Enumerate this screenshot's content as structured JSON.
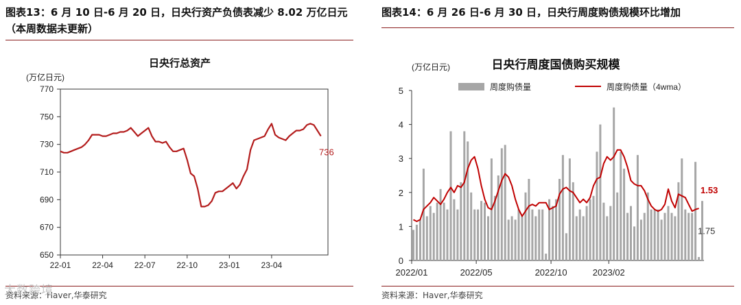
{
  "left": {
    "figure_title": "图表13：6 月 10 日-6 月 20 日，日央行资产负债表减少 8.02 万亿日元（本周数据未更新）",
    "source": "资料来源：Haver,华泰研究",
    "watermark": "大数跨境"
  },
  "right": {
    "figure_title": "图表14：6 月 26 日-6 月 30 日，日央行周度购债规模环比增加",
    "source": "资料来源：Haver,华泰研究"
  },
  "chart_data": [
    {
      "type": "line",
      "title": "日央行总资产",
      "unit_label": "(万亿日元)",
      "ylim": [
        650,
        770
      ],
      "yticks": [
        650,
        670,
        690,
        710,
        730,
        750,
        770
      ],
      "xlim": [
        0,
        19
      ],
      "xticks": [
        {
          "pos": 0,
          "label": "22-01"
        },
        {
          "pos": 3,
          "label": "22-04"
        },
        {
          "pos": 6,
          "label": "22-07"
        },
        {
          "pos": 9,
          "label": "22-10"
        },
        {
          "pos": 12,
          "label": "23-01"
        },
        {
          "pos": 15,
          "label": "23-04"
        }
      ],
      "color": "#b31b1b",
      "end_label": "736",
      "x": [
        0.0,
        0.25,
        0.5,
        0.75,
        1.0,
        1.25,
        1.5,
        1.75,
        2.0,
        2.25,
        2.5,
        2.75,
        3.0,
        3.25,
        3.5,
        3.75,
        4.0,
        4.25,
        4.5,
        4.75,
        5.0,
        5.25,
        5.5,
        5.75,
        6.0,
        6.25,
        6.5,
        6.75,
        7.0,
        7.25,
        7.5,
        7.75,
        8.0,
        8.25,
        8.5,
        8.75,
        9.0,
        9.25,
        9.5,
        9.75,
        10.0,
        10.25,
        10.5,
        10.75,
        11.0,
        11.25,
        11.5,
        11.75,
        12.0,
        12.25,
        12.5,
        12.75,
        13.0,
        13.25,
        13.5,
        13.75,
        14.0,
        14.25,
        14.5,
        14.75,
        15.0,
        15.25,
        15.5,
        15.75,
        16.0,
        16.25,
        16.5,
        16.75,
        17.0,
        17.25,
        17.5,
        17.75,
        18.0,
        18.25,
        18.5
      ],
      "y": [
        725,
        724,
        724,
        725,
        726,
        727,
        728,
        730,
        733,
        737,
        737,
        737,
        736,
        736,
        737,
        738,
        738,
        739,
        739,
        740,
        742,
        739,
        736,
        738,
        740,
        742,
        736,
        732,
        732,
        731,
        732,
        728,
        725,
        725,
        726,
        727,
        719,
        709,
        707,
        698,
        685,
        685,
        686,
        689,
        695,
        696,
        696,
        698,
        700,
        702,
        698,
        701,
        707,
        712,
        726,
        733,
        734,
        735,
        736,
        741,
        745,
        737,
        735,
        734,
        733,
        736,
        738,
        740,
        740,
        741,
        744,
        745,
        744,
        740,
        736
      ]
    },
    {
      "type": "bar",
      "title": "日央行周度国债购买规模",
      "unit_label": "(万亿日元)",
      "ylim": [
        0,
        5
      ],
      "yticks": [
        0,
        1,
        2,
        3,
        4,
        5
      ],
      "xticks": [
        {
          "index": 0,
          "label": "2022/01"
        },
        {
          "index": 19,
          "label": "2022/05"
        },
        {
          "index": 41,
          "label": "2022/10"
        },
        {
          "index": 58,
          "label": "2023/02"
        }
      ],
      "series": [
        {
          "name": "周度购债量",
          "color": "#a6a6a6",
          "values": [
            0.9,
            1.05,
            1.2,
            2.7,
            1.3,
            1.6,
            1.4,
            1.7,
            2.1,
            1.7,
            1.5,
            3.8,
            1.8,
            1.5,
            2.3,
            3.8,
            3.5,
            2.0,
            1.5,
            1.5,
            1.75,
            1.7,
            1.3,
            3.0,
            1.9,
            2.5,
            3.3,
            3.4,
            1.2,
            1.3,
            1.2,
            1.5,
            1.3,
            2.0,
            2.4,
            1.5,
            1.3,
            1.5,
            1.5,
            0.2,
            1.8,
            1.6,
            1.8,
            2.4,
            3.1,
            0.8,
            3.0,
            2.3,
            1.3,
            1.5,
            1.3,
            1.6,
            1.8,
            1.9,
            3.2,
            4.0,
            1.7,
            1.3,
            1.6,
            4.5,
            2.0,
            3.2,
            2.7,
            1.4,
            1.6,
            1.0,
            3.1,
            1.2,
            1.4,
            2.0,
            1.5,
            1.5,
            1.5,
            1.2,
            1.4,
            1.6,
            1.4,
            1.3,
            2.3,
            3.0,
            1.5,
            1.4,
            1.4,
            2.9,
            0.1,
            1.75
          ]
        },
        {
          "name": "周度购债量（4wma）",
          "color": "#c00000",
          "values": [
            1.2,
            1.15,
            1.2,
            1.5,
            1.6,
            1.7,
            1.85,
            1.75,
            1.65,
            1.8,
            2.0,
            2.15,
            2.0,
            2.2,
            2.15,
            2.3,
            2.7,
            2.95,
            3.05,
            2.7,
            2.2,
            1.8,
            1.55,
            1.5,
            1.75,
            2.05,
            2.35,
            2.55,
            2.45,
            2.2,
            1.8,
            1.5,
            1.3,
            1.45,
            1.6,
            1.65,
            1.6,
            1.7,
            1.7,
            1.7,
            1.5,
            1.55,
            1.6,
            1.95,
            2.1,
            2.15,
            2.05,
            2.0,
            1.85,
            1.7,
            1.8,
            1.7,
            1.85,
            2.2,
            2.4,
            2.45,
            2.85,
            3.05,
            2.95,
            3.05,
            3.25,
            3.25,
            3.05,
            2.75,
            2.35,
            2.25,
            2.2,
            2.2,
            2.05,
            1.8,
            1.6,
            1.5,
            1.45,
            1.5,
            1.65,
            2.1,
            1.75,
            1.55,
            1.95,
            1.9,
            1.85,
            1.65,
            1.45,
            1.5,
            1.53
          ]
        }
      ],
      "end_labels": [
        "1.53",
        "1.75"
      ],
      "end_label_colors": [
        "#c00000",
        "#333333"
      ]
    }
  ]
}
